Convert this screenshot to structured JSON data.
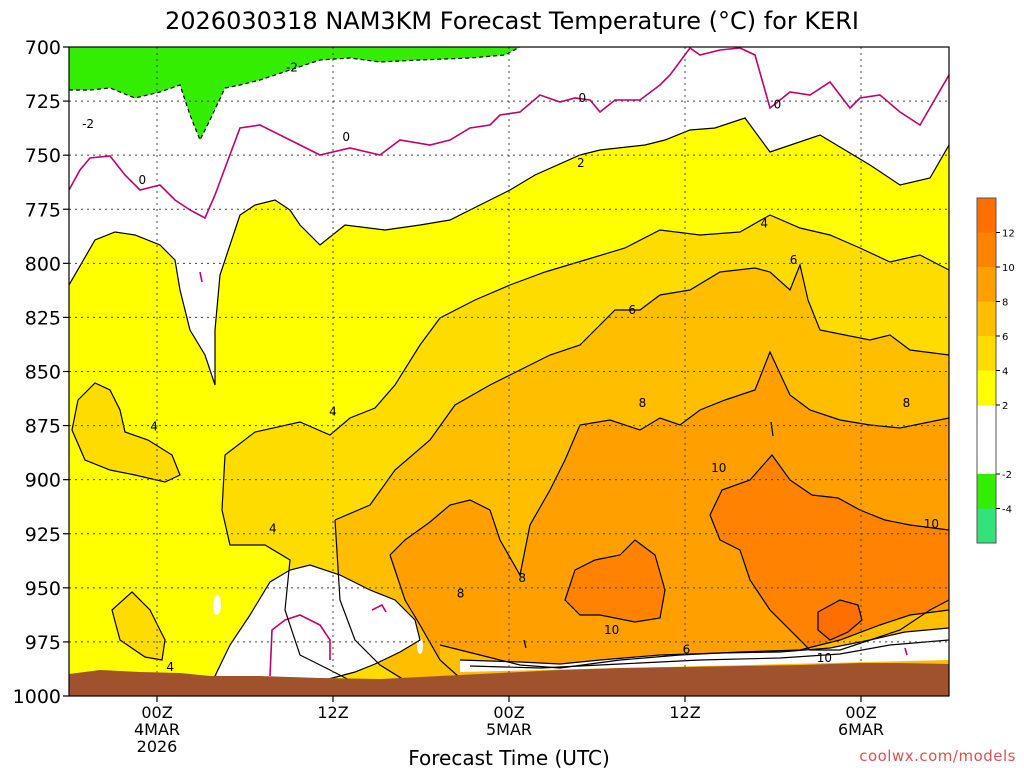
{
  "chart_data": {
    "type": "contour",
    "title": "2026030318 NAM3KM Forecast Temperature (°C) for KERI",
    "xlabel": "Forecast Time (UTC)",
    "ylabel": "",
    "y_ticks": [
      "700",
      "725",
      "750",
      "775",
      "800",
      "825",
      "850",
      "875",
      "900",
      "925",
      "950",
      "975",
      "1000"
    ],
    "y_range": [
      700,
      1000
    ],
    "y_axis_inverted": true,
    "x_ticks": [
      {
        "hours": 6,
        "lines": [
          "00Z",
          "4MAR",
          "2026"
        ]
      },
      {
        "hours": 18,
        "lines": [
          "12Z"
        ]
      },
      {
        "hours": 30,
        "lines": [
          "00Z",
          "5MAR"
        ]
      },
      {
        "hours": 42,
        "lines": [
          "12Z"
        ]
      },
      {
        "hours": 54,
        "lines": [
          "00Z",
          "6MAR"
        ]
      }
    ],
    "x_range_hours": [
      0,
      60
    ],
    "grid": true,
    "colorbar": {
      "placement": "right",
      "levels": [
        -6,
        -4,
        -2,
        0,
        2,
        4,
        6,
        8,
        10,
        12,
        14
      ],
      "tick_labels": [
        "-4",
        "-2",
        "2",
        "4",
        "6",
        "8",
        "10",
        "12"
      ],
      "tick_values": [
        -4,
        -2,
        2,
        4,
        6,
        8,
        10,
        12
      ],
      "colors": [
        "#33e27a",
        "#33ee00",
        "#ffffff",
        "#ffffff",
        "#ffff00",
        "#ffdc00",
        "#ffbe00",
        "#ffa000",
        "#ff8200",
        "#ff6e00"
      ]
    },
    "contour_labels": [
      {
        "text": "-2",
        "hours": 1.3,
        "pressure": 736
      },
      {
        "text": "-2",
        "hours": 15.2,
        "pressure": 710
      },
      {
        "text": "0",
        "hours": 5.0,
        "pressure": 762
      },
      {
        "text": "0",
        "hours": 18.9,
        "pressure": 742
      },
      {
        "text": "0",
        "hours": 35.0,
        "pressure": 724
      },
      {
        "text": "0",
        "hours": 48.3,
        "pressure": 727
      },
      {
        "text": "2",
        "hours": 34.9,
        "pressure": 754
      },
      {
        "text": "4",
        "hours": 47.4,
        "pressure": 782
      },
      {
        "text": "6",
        "hours": 49.4,
        "pressure": 799
      },
      {
        "text": "6",
        "hours": 38.4,
        "pressure": 822
      },
      {
        "text": "4",
        "hours": 5.8,
        "pressure": 876
      },
      {
        "text": "4",
        "hours": 18.0,
        "pressure": 869
      },
      {
        "text": "8",
        "hours": 39.1,
        "pressure": 865
      },
      {
        "text": "8",
        "hours": 57.1,
        "pressure": 865
      },
      {
        "text": "10",
        "hours": 44.3,
        "pressure": 895
      },
      {
        "text": "10",
        "hours": 58.8,
        "pressure": 921
      },
      {
        "text": "4",
        "hours": 13.9,
        "pressure": 923
      },
      {
        "text": "8",
        "hours": 26.7,
        "pressure": 953
      },
      {
        "text": "8",
        "hours": 30.9,
        "pressure": 946
      },
      {
        "text": "10",
        "hours": 37.0,
        "pressure": 970
      },
      {
        "text": "6",
        "hours": 42.1,
        "pressure": 979
      },
      {
        "text": "10",
        "hours": 51.5,
        "pressure": 983
      },
      {
        "text": "4",
        "hours": 6.9,
        "pressure": 987
      }
    ],
    "credit": "coolwx.com/models"
  }
}
